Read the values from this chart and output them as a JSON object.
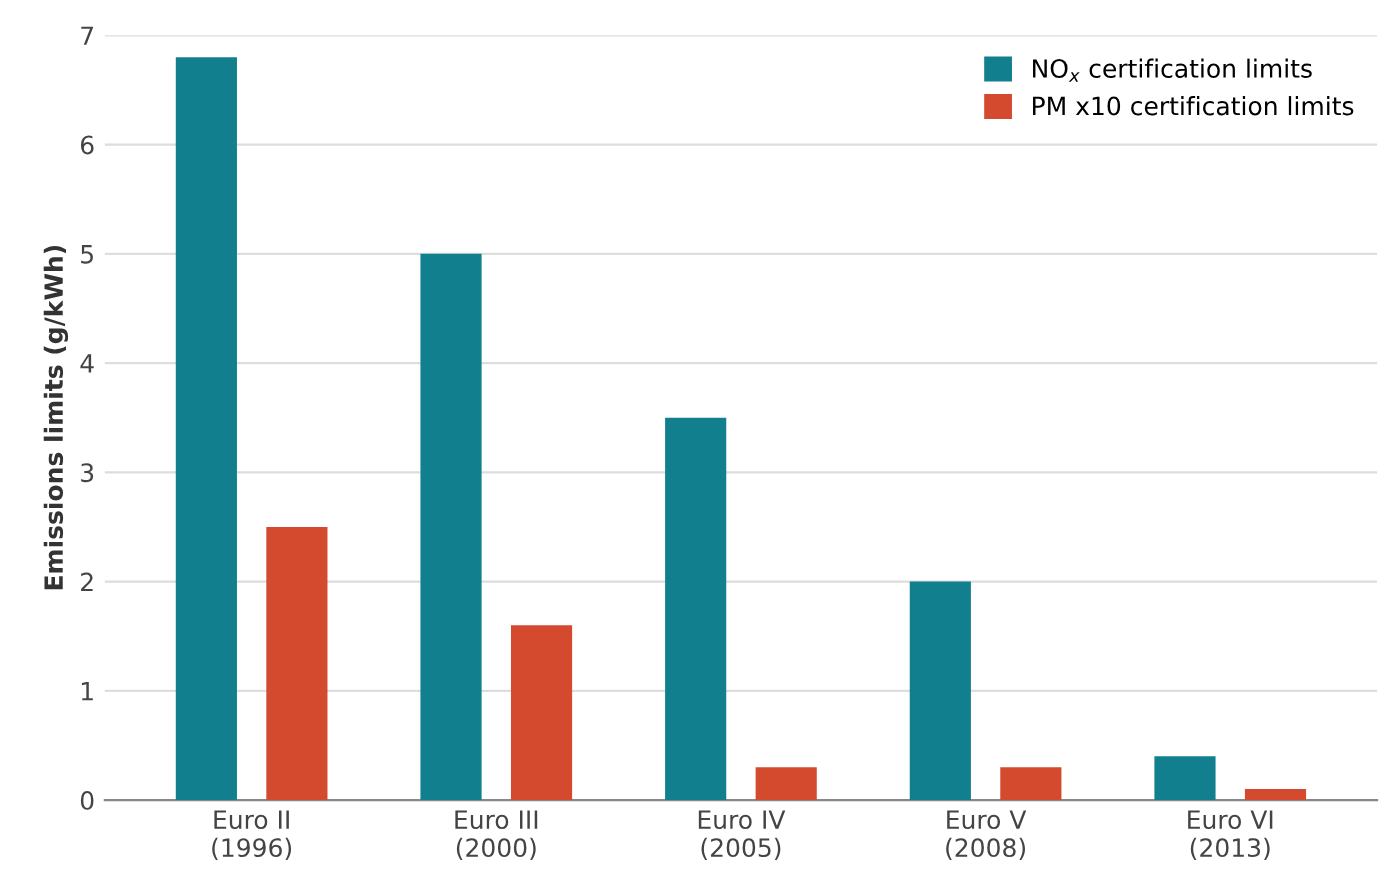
{
  "chart_data": {
    "type": "bar",
    "ylabel": "Emissions limits (g/kWh)",
    "categories": [
      "Euro II\n(1996)",
      "Euro III\n(2000)",
      "Euro IV\n(2005)",
      "Euro V\n(2008)",
      "Euro VI\n(2013)"
    ],
    "series": [
      {
        "name": "NO$_{x}$ certification limits",
        "color": "#127f8e",
        "values": [
          6.8,
          5.0,
          3.5,
          2.0,
          0.4
        ]
      },
      {
        "name": "PM x10 certification limits",
        "color": "#d44a2f",
        "values": [
          2.5,
          1.6,
          0.3,
          0.3,
          0.1
        ]
      }
    ],
    "ylim": [
      0,
      7
    ],
    "yticks": [
      0,
      1,
      2,
      3,
      4,
      5,
      6,
      7
    ],
    "grid": "y",
    "legend": "top right"
  }
}
